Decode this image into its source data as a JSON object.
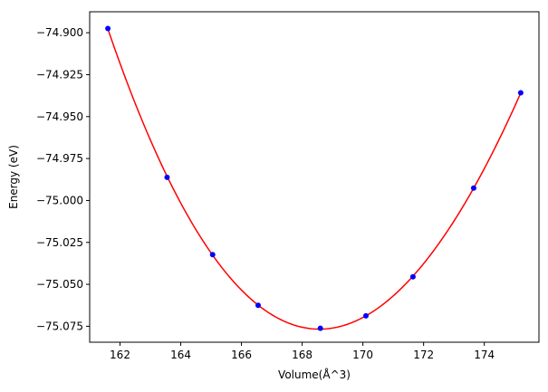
{
  "chart_data": {
    "type": "scatter",
    "title": "",
    "xlabel": "Volume(Å^3)",
    "ylabel": "Energy (eV)",
    "xlim": [
      161.0,
      175.8
    ],
    "ylim": [
      -75.0845,
      -74.8875
    ],
    "grid": false,
    "legend": "none",
    "x_ticks": [
      162,
      164,
      166,
      168,
      170,
      172,
      174
    ],
    "x_tick_labels": [
      "162",
      "164",
      "166",
      "168",
      "170",
      "172",
      "174"
    ],
    "y_ticks": [
      -74.9,
      -74.925,
      -74.95,
      -74.975,
      -75.0,
      -75.025,
      -75.05,
      -75.075
    ],
    "y_tick_labels": [
      "−74.900",
      "−74.925",
      "−74.950",
      "−74.975",
      "−75.000",
      "−75.025",
      "−75.050",
      "−75.075"
    ],
    "series": [
      {
        "type": "scatter",
        "color": "#0000ff",
        "x": [
          161.6,
          163.55,
          165.05,
          166.55,
          168.6,
          170.1,
          171.65,
          173.65,
          175.2
        ],
        "y": [
          -74.8975,
          -74.9862,
          -75.0323,
          -75.0625,
          -75.0762,
          -75.0688,
          -75.0455,
          -74.9926,
          -74.9358
        ]
      },
      {
        "type": "line",
        "color": "#ff0000",
        "fit": "cubic-polynomial"
      }
    ]
  }
}
